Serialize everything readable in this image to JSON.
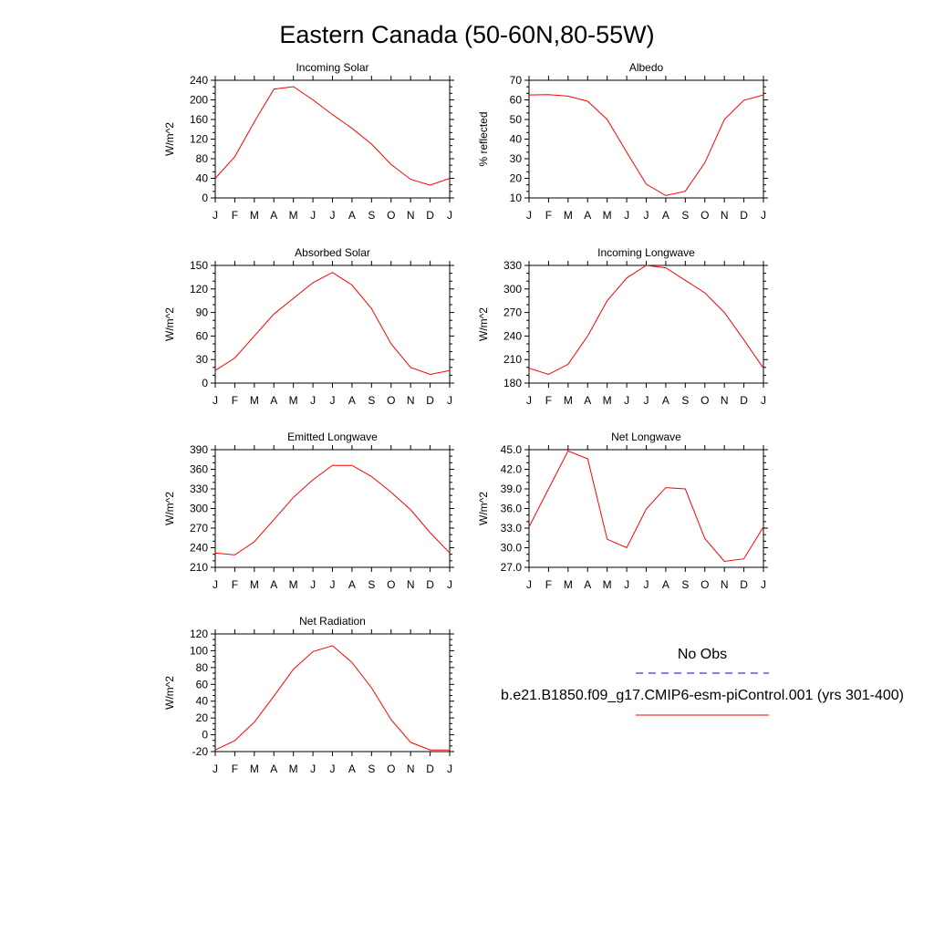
{
  "page_title": "Eastern Canada (50-60N,80-55W)",
  "colors": {
    "model_line": "#ff0000",
    "obs_line": "#0000ff",
    "axis": "#000000"
  },
  "legend": {
    "obs_label": "No Obs",
    "model_label": "b.e21.B1850.f09_g17.CMIP6-esm-piControl.001 (yrs 301-400)"
  },
  "chart_data": [
    {
      "type": "line",
      "title": "Incoming Solar",
      "ylabel": "W/m^2",
      "categories": [
        "J",
        "F",
        "M",
        "A",
        "M",
        "J",
        "J",
        "A",
        "S",
        "O",
        "N",
        "D",
        "J"
      ],
      "ylim": [
        0,
        240
      ],
      "yticks": [
        "0",
        "40",
        "80",
        "120",
        "160",
        "200",
        "240"
      ],
      "series": [
        {
          "values": [
            40,
            84,
            155,
            222,
            227,
            200,
            170,
            142,
            110,
            68,
            38,
            26,
            40
          ]
        }
      ]
    },
    {
      "type": "line",
      "title": "Albedo",
      "ylabel": "% reflected",
      "categories": [
        "J",
        "F",
        "M",
        "A",
        "M",
        "J",
        "J",
        "A",
        "S",
        "O",
        "N",
        "D",
        "J"
      ],
      "ylim": [
        10,
        70
      ],
      "yticks": [
        "10",
        "20",
        "30",
        "40",
        "50",
        "60",
        "70"
      ],
      "series": [
        {
          "values": [
            62.5,
            62.7,
            61.9,
            59.3,
            50,
            33.3,
            17,
            11.2,
            13.4,
            28,
            50,
            59.8,
            62.5
          ]
        }
      ]
    },
    {
      "type": "line",
      "title": "Absorbed Solar",
      "ylabel": "W/m^2",
      "categories": [
        "J",
        "F",
        "M",
        "A",
        "M",
        "J",
        "J",
        "A",
        "S",
        "O",
        "N",
        "D",
        "J"
      ],
      "ylim": [
        0,
        150
      ],
      "yticks": [
        "0",
        "30",
        "60",
        "90",
        "120",
        "150"
      ],
      "series": [
        {
          "values": [
            16,
            32,
            60,
            88,
            108,
            128,
            141,
            125,
            95,
            50,
            20,
            11,
            16
          ]
        }
      ]
    },
    {
      "type": "line",
      "title": "Incoming Longwave",
      "ylabel": "W/m^2",
      "categories": [
        "J",
        "F",
        "M",
        "A",
        "M",
        "J",
        "J",
        "A",
        "S",
        "O",
        "N",
        "D",
        "J"
      ],
      "ylim": [
        180,
        330
      ],
      "yticks": [
        "180",
        "210",
        "240",
        "270",
        "300",
        "330"
      ],
      "series": [
        {
          "values": [
            199,
            191,
            204,
            240,
            285,
            314,
            330,
            327,
            311,
            295,
            270,
            235,
            199
          ]
        }
      ]
    },
    {
      "type": "line",
      "title": "Emitted Longwave",
      "ylabel": "W/m^2",
      "categories": [
        "J",
        "F",
        "M",
        "A",
        "M",
        "J",
        "J",
        "A",
        "S",
        "O",
        "N",
        "D",
        "J"
      ],
      "ylim": [
        210,
        390
      ],
      "yticks": [
        "210",
        "240",
        "270",
        "300",
        "330",
        "360",
        "390"
      ],
      "series": [
        {
          "values": [
            232,
            229,
            249,
            283,
            317,
            344,
            366,
            366,
            349,
            325,
            298,
            263,
            232
          ]
        }
      ]
    },
    {
      "type": "line",
      "title": "Net Longwave",
      "ylabel": "W/m^2",
      "categories": [
        "J",
        "F",
        "M",
        "A",
        "M",
        "J",
        "J",
        "A",
        "S",
        "O",
        "N",
        "D",
        "J"
      ],
      "ylim": [
        27,
        45
      ],
      "yticks": [
        "27.0",
        "30.0",
        "33.0",
        "36.0",
        "39.0",
        "42.0",
        "45.0"
      ],
      "series": [
        {
          "values": [
            33.2,
            39,
            44.8,
            43.6,
            31.3,
            30,
            35.9,
            39.2,
            39,
            31.4,
            27.9,
            28.3,
            33.2
          ]
        }
      ]
    },
    {
      "type": "line",
      "title": "Net Radiation",
      "ylabel": "W/m^2",
      "categories": [
        "J",
        "F",
        "M",
        "A",
        "M",
        "J",
        "J",
        "A",
        "S",
        "O",
        "N",
        "D",
        "J"
      ],
      "ylim": [
        -20,
        120
      ],
      "yticks": [
        "-20",
        "0",
        "20",
        "40",
        "60",
        "80",
        "100",
        "120"
      ],
      "series": [
        {
          "values": [
            -18,
            -7,
            15,
            46,
            78,
            99,
            106,
            86,
            56,
            18,
            -9,
            -18,
            -18
          ]
        }
      ]
    }
  ]
}
